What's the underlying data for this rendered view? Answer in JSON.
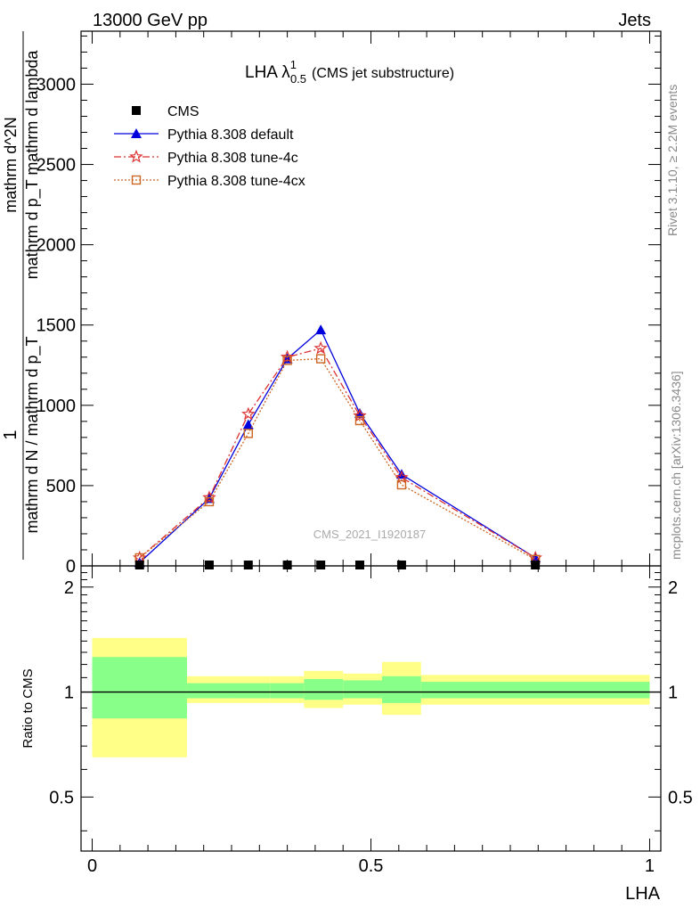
{
  "header": {
    "left": "13000 GeV pp",
    "right": "Jets"
  },
  "side_text": {
    "rivet": "Rivet 3.1.10, ≥ 2.2M events",
    "mcplots": "mcplots.cern.ch [arXiv:1306.3436]"
  },
  "watermark": "CMS_2021_I1920187",
  "colors": {
    "cms": "#000000",
    "default": "#0000dd",
    "tune4c": "#dd3333",
    "tune4cx": "#cc6622",
    "band_outer": "#ffff88",
    "band_inner": "#88ff88"
  },
  "chart_data": [
    {
      "type": "line",
      "title_main": "LHA λ",
      "title_sup": "1",
      "title_sub": "0.5",
      "title_suffix": "(CMS jet substructure)",
      "ylabel_num": "1",
      "ylabel_den": "mathrm d N / mathrm d p_T",
      "ylabel_num2": "mathrm d^2N",
      "ylabel_den2": "mathrm d p_T mathrm d lambda",
      "xlim": [
        -0.02,
        1.02
      ],
      "ylim": [
        0,
        3330
      ],
      "yticks": [
        0,
        500,
        1000,
        1500,
        2000,
        2500,
        3000
      ],
      "ytick_labels": [
        "0",
        "500",
        "1000",
        "1500",
        "2000",
        "2500",
        "3000"
      ],
      "x": [
        0.085,
        0.21,
        0.28,
        0.35,
        0.41,
        0.48,
        0.555,
        0.795
      ],
      "series": [
        {
          "name": "CMS",
          "marker": "square",
          "values": [
            0,
            0,
            0,
            0,
            0,
            0,
            0,
            0
          ]
        },
        {
          "name": "Pythia 8.308 default",
          "marker": "triangle",
          "values": [
            20,
            420,
            880,
            1290,
            1470,
            950,
            570,
            50
          ]
        },
        {
          "name": "Pythia 8.308 tune-4c",
          "marker": "star",
          "values": [
            50,
            425,
            945,
            1300,
            1355,
            935,
            550,
            50
          ]
        },
        {
          "name": "Pythia 8.308 tune-4cx",
          "marker": "open-square",
          "values": [
            50,
            400,
            825,
            1280,
            1290,
            905,
            505,
            40
          ]
        }
      ],
      "legend": "top-left",
      "grid": false
    },
    {
      "type": "area",
      "xlabel": "LHA",
      "ylabel": "Ratio to CMS",
      "xlim": [
        -0.02,
        1.02
      ],
      "ylim": [
        0.35,
        2.3
      ],
      "yticks": [
        0.5,
        1,
        2
      ],
      "ytick_labels": [
        "0.5",
        "1",
        "2"
      ],
      "xticks": [
        0,
        0.5,
        1
      ],
      "xtick_labels": [
        "0",
        "0.5",
        "1"
      ],
      "bins": [
        {
          "x": [
            0,
            0.17
          ],
          "inner": [
            0.84,
            1.26
          ],
          "outer": [
            0.65,
            1.43
          ]
        },
        {
          "x": [
            0.17,
            0.25
          ],
          "inner": [
            0.96,
            1.06
          ],
          "outer": [
            0.93,
            1.11
          ]
        },
        {
          "x": [
            0.25,
            0.32
          ],
          "inner": [
            0.96,
            1.06
          ],
          "outer": [
            0.93,
            1.11
          ]
        },
        {
          "x": [
            0.32,
            0.38
          ],
          "inner": [
            0.96,
            1.06
          ],
          "outer": [
            0.93,
            1.11
          ]
        },
        {
          "x": [
            0.38,
            0.45
          ],
          "inner": [
            0.95,
            1.09
          ],
          "outer": [
            0.9,
            1.15
          ]
        },
        {
          "x": [
            0.45,
            0.52
          ],
          "inner": [
            0.96,
            1.08
          ],
          "outer": [
            0.92,
            1.13
          ]
        },
        {
          "x": [
            0.52,
            0.59
          ],
          "inner": [
            0.93,
            1.11
          ],
          "outer": [
            0.86,
            1.22
          ]
        },
        {
          "x": [
            0.59,
            1.0
          ],
          "inner": [
            0.96,
            1.07
          ],
          "outer": [
            0.92,
            1.12
          ]
        }
      ],
      "reference": 1
    }
  ]
}
